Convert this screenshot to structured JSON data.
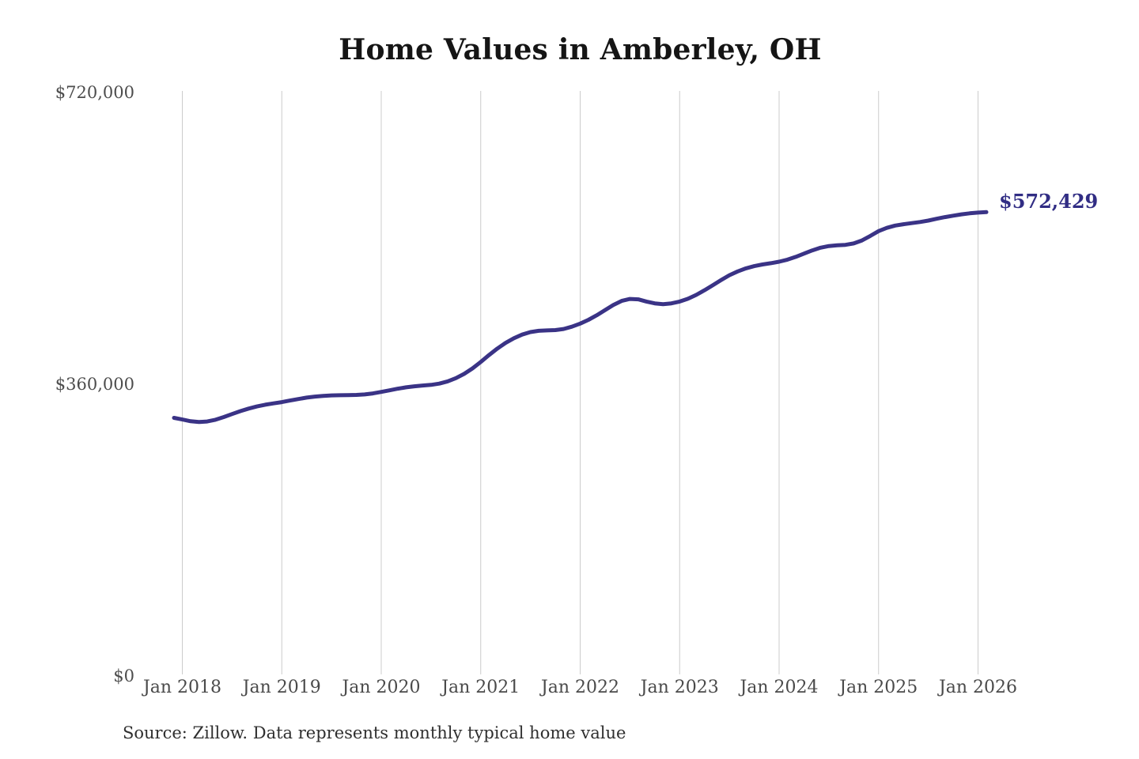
{
  "page": {
    "background": "#ffffff"
  },
  "chart_data": {
    "type": "line",
    "title": "Home Values in Amberley, OH",
    "source_note": "Source: Zillow. Data represents monthly typical home value",
    "end_label": "$572,429",
    "end_value": 572429,
    "xlabel": "",
    "ylabel": "",
    "ylim": [
      0,
      720000
    ],
    "grid": "vertical-only",
    "legend": "none",
    "colors": {
      "line": "#3a3386",
      "annotation": "#312d84",
      "grid": "#cccccc",
      "title": "#151515",
      "axis_text": "#4d4d4d",
      "source_text": "#2f2f2f",
      "background": "#ffffff"
    },
    "y_ticks": [
      {
        "label": "$0",
        "value": 0
      },
      {
        "label": "$360,000",
        "value": 360000
      },
      {
        "label": "$720,000",
        "value": 720000
      }
    ],
    "x_ticks": [
      {
        "label": "Jan 2018",
        "date": "2018-01"
      },
      {
        "label": "Jan 2019",
        "date": "2019-01"
      },
      {
        "label": "Jan 2020",
        "date": "2020-01"
      },
      {
        "label": "Jan 2021",
        "date": "2021-01"
      },
      {
        "label": "Jan 2022",
        "date": "2022-01"
      },
      {
        "label": "Jan 2023",
        "date": "2023-01"
      },
      {
        "label": "Jan 2024",
        "date": "2024-01"
      },
      {
        "label": "Jan 2025",
        "date": "2025-01"
      },
      {
        "label": "Jan 2026",
        "date": "2026-01"
      }
    ],
    "series": [
      {
        "name": "Monthly typical home value",
        "points": [
          {
            "date": "2017-12",
            "value": 318500
          },
          {
            "date": "2018-01",
            "value": 316500
          },
          {
            "date": "2018-02",
            "value": 314300
          },
          {
            "date": "2018-03",
            "value": 313400
          },
          {
            "date": "2018-04",
            "value": 314000
          },
          {
            "date": "2018-05",
            "value": 316200
          },
          {
            "date": "2018-06",
            "value": 319500
          },
          {
            "date": "2018-07",
            "value": 323200
          },
          {
            "date": "2018-08",
            "value": 326800
          },
          {
            "date": "2018-09",
            "value": 330000
          },
          {
            "date": "2018-10",
            "value": 332600
          },
          {
            "date": "2018-11",
            "value": 334700
          },
          {
            "date": "2018-12",
            "value": 336400
          },
          {
            "date": "2019-01",
            "value": 338000
          },
          {
            "date": "2019-02",
            "value": 339900
          },
          {
            "date": "2019-03",
            "value": 341800
          },
          {
            "date": "2019-04",
            "value": 343500
          },
          {
            "date": "2019-05",
            "value": 344800
          },
          {
            "date": "2019-06",
            "value": 345700
          },
          {
            "date": "2019-07",
            "value": 346200
          },
          {
            "date": "2019-08",
            "value": 346400
          },
          {
            "date": "2019-09",
            "value": 346500
          },
          {
            "date": "2019-10",
            "value": 346800
          },
          {
            "date": "2019-11",
            "value": 347400
          },
          {
            "date": "2019-12",
            "value": 348700
          },
          {
            "date": "2020-01",
            "value": 350500
          },
          {
            "date": "2020-02",
            "value": 352500
          },
          {
            "date": "2020-03",
            "value": 354500
          },
          {
            "date": "2020-04",
            "value": 356200
          },
          {
            "date": "2020-05",
            "value": 357500
          },
          {
            "date": "2020-06",
            "value": 358400
          },
          {
            "date": "2020-07",
            "value": 359200
          },
          {
            "date": "2020-08",
            "value": 360800
          },
          {
            "date": "2020-09",
            "value": 363500
          },
          {
            "date": "2020-10",
            "value": 367500
          },
          {
            "date": "2020-11",
            "value": 372800
          },
          {
            "date": "2020-12",
            "value": 379500
          },
          {
            "date": "2021-01",
            "value": 387500
          },
          {
            "date": "2021-02",
            "value": 396000
          },
          {
            "date": "2021-03",
            "value": 404000
          },
          {
            "date": "2021-04",
            "value": 411000
          },
          {
            "date": "2021-05",
            "value": 416800
          },
          {
            "date": "2021-06",
            "value": 421300
          },
          {
            "date": "2021-07",
            "value": 424400
          },
          {
            "date": "2021-08",
            "value": 426000
          },
          {
            "date": "2021-09",
            "value": 426400
          },
          {
            "date": "2021-10",
            "value": 426800
          },
          {
            "date": "2021-11",
            "value": 428200
          },
          {
            "date": "2021-12",
            "value": 431000
          },
          {
            "date": "2022-01",
            "value": 434800
          },
          {
            "date": "2022-02",
            "value": 439500
          },
          {
            "date": "2022-03",
            "value": 445200
          },
          {
            "date": "2022-04",
            "value": 451500
          },
          {
            "date": "2022-05",
            "value": 457800
          },
          {
            "date": "2022-06",
            "value": 462800
          },
          {
            "date": "2022-07",
            "value": 465300
          },
          {
            "date": "2022-08",
            "value": 464800
          },
          {
            "date": "2022-09",
            "value": 462000
          },
          {
            "date": "2022-10",
            "value": 459800
          },
          {
            "date": "2022-11",
            "value": 458800
          },
          {
            "date": "2022-12",
            "value": 459800
          },
          {
            "date": "2023-01",
            "value": 462000
          },
          {
            "date": "2023-02",
            "value": 465500
          },
          {
            "date": "2023-03",
            "value": 470200
          },
          {
            "date": "2023-04",
            "value": 476000
          },
          {
            "date": "2023-05",
            "value": 482200
          },
          {
            "date": "2023-06",
            "value": 488500
          },
          {
            "date": "2023-07",
            "value": 494500
          },
          {
            "date": "2023-08",
            "value": 499200
          },
          {
            "date": "2023-09",
            "value": 503000
          },
          {
            "date": "2023-10",
            "value": 505800
          },
          {
            "date": "2023-11",
            "value": 507800
          },
          {
            "date": "2023-12",
            "value": 509400
          },
          {
            "date": "2024-01",
            "value": 511200
          },
          {
            "date": "2024-02",
            "value": 513800
          },
          {
            "date": "2024-03",
            "value": 517200
          },
          {
            "date": "2024-04",
            "value": 521200
          },
          {
            "date": "2024-05",
            "value": 525200
          },
          {
            "date": "2024-06",
            "value": 528500
          },
          {
            "date": "2024-07",
            "value": 530500
          },
          {
            "date": "2024-08",
            "value": 531400
          },
          {
            "date": "2024-09",
            "value": 532000
          },
          {
            "date": "2024-10",
            "value": 533800
          },
          {
            "date": "2024-11",
            "value": 537500
          },
          {
            "date": "2024-12",
            "value": 543000
          },
          {
            "date": "2025-01",
            "value": 549000
          },
          {
            "date": "2025-02",
            "value": 553000
          },
          {
            "date": "2025-03",
            "value": 555800
          },
          {
            "date": "2025-04",
            "value": 557500
          },
          {
            "date": "2025-05",
            "value": 558800
          },
          {
            "date": "2025-06",
            "value": 560200
          },
          {
            "date": "2025-07",
            "value": 562000
          },
          {
            "date": "2025-08",
            "value": 564200
          },
          {
            "date": "2025-09",
            "value": 566200
          },
          {
            "date": "2025-10",
            "value": 568000
          },
          {
            "date": "2025-11",
            "value": 569700
          },
          {
            "date": "2025-12",
            "value": 570900
          },
          {
            "date": "2026-01",
            "value": 571800
          },
          {
            "date": "2026-02",
            "value": 572429
          }
        ]
      }
    ]
  }
}
